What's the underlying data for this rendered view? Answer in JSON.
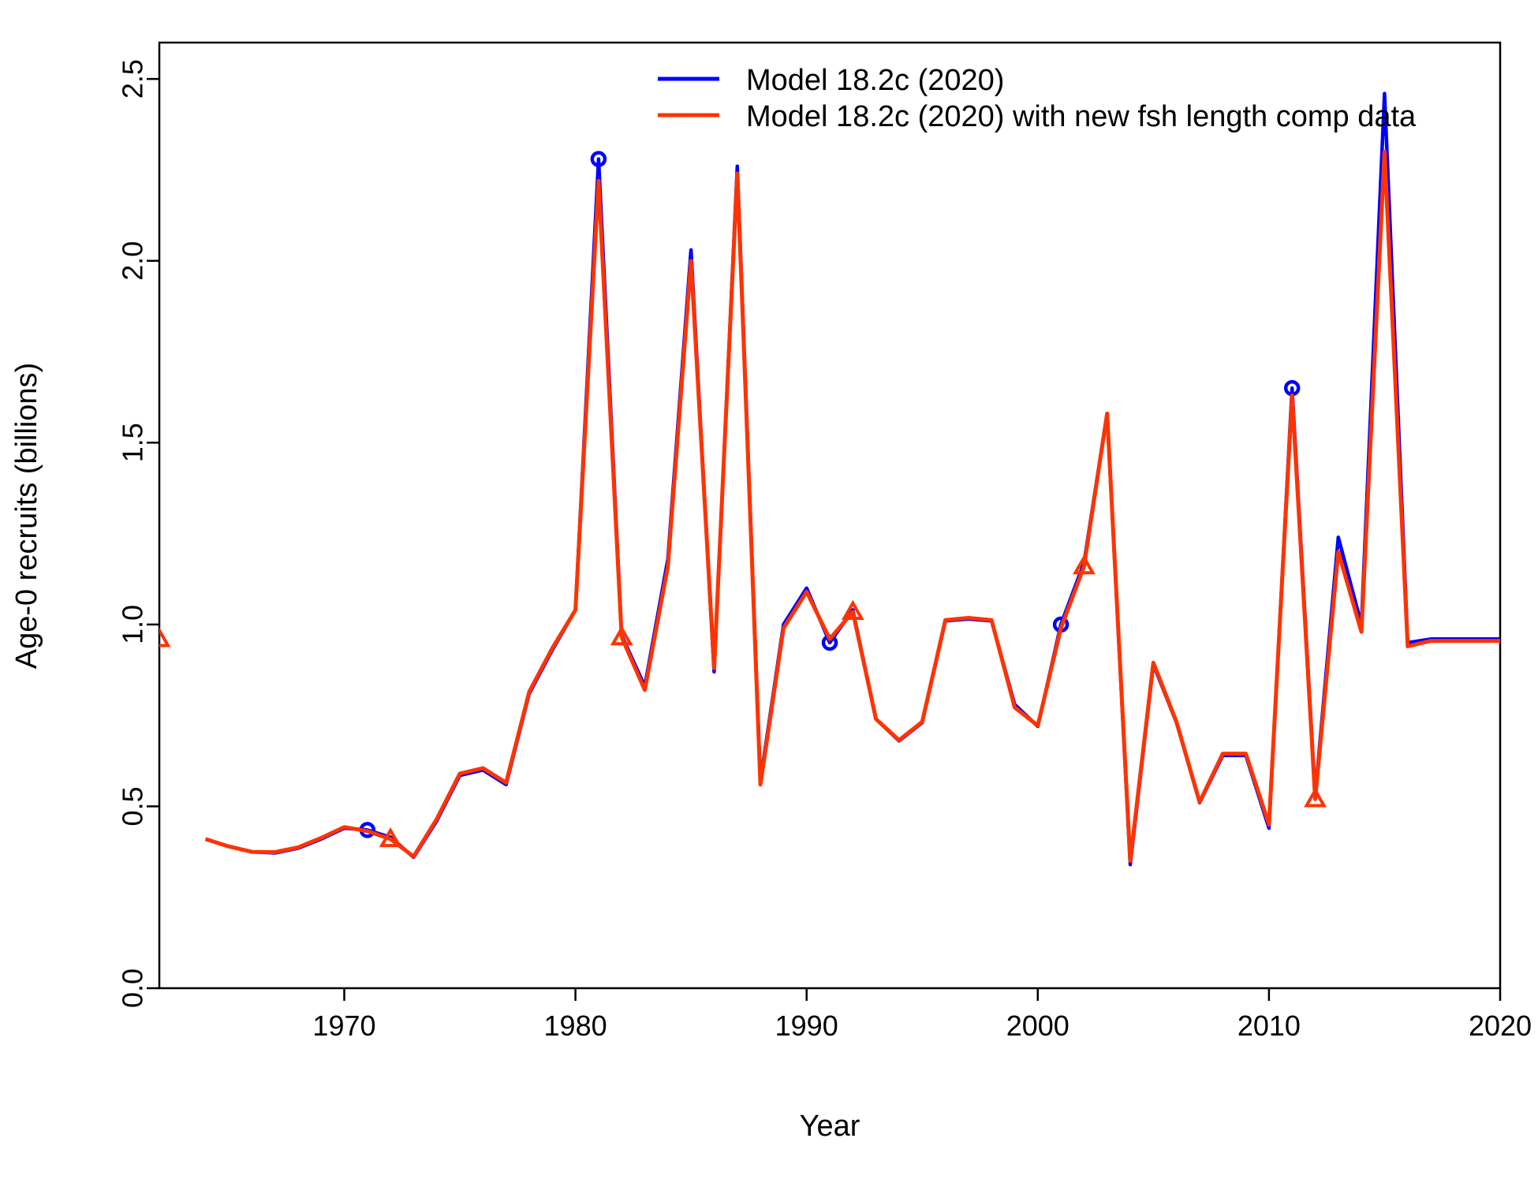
{
  "chart_data": {
    "type": "line",
    "xlabel": "Year",
    "ylabel": "Age-0 recruits (billions)",
    "xlim": [
      1962,
      2020
    ],
    "ylim": [
      0,
      2.6
    ],
    "x_ticks": [
      1970,
      1980,
      1990,
      2000,
      2010,
      2020
    ],
    "y_ticks": [
      0.0,
      0.5,
      1.0,
      1.5,
      2.0,
      2.5
    ],
    "y_tick_labels": [
      "0.0",
      "0.5",
      "1.0",
      "1.5",
      "2.0",
      "2.5"
    ],
    "grid": false,
    "legend_position": "top-right",
    "x": [
      1962,
      1963,
      1964,
      1965,
      1966,
      1967,
      1968,
      1969,
      1970,
      1971,
      1972,
      1973,
      1974,
      1975,
      1976,
      1977,
      1978,
      1979,
      1980,
      1981,
      1982,
      1983,
      1984,
      1985,
      1986,
      1987,
      1988,
      1989,
      1990,
      1991,
      1992,
      1993,
      1994,
      1995,
      1996,
      1997,
      1998,
      1999,
      2000,
      2001,
      2002,
      2003,
      2004,
      2005,
      2006,
      2007,
      2008,
      2009,
      2010,
      2011,
      2012,
      2013,
      2014,
      2015,
      2016,
      2017,
      2018,
      2019,
      2020
    ],
    "series": [
      {
        "name": "Model 18.2c (2020)",
        "color": "#0000ff",
        "marker": "circle",
        "marker_every": 10,
        "values": [
          0.97,
          null,
          0.41,
          0.39,
          0.375,
          0.372,
          0.385,
          0.41,
          0.44,
          0.435,
          0.415,
          0.36,
          0.46,
          0.585,
          0.6,
          0.56,
          0.81,
          0.93,
          1.04,
          2.28,
          0.97,
          0.83,
          1.18,
          2.03,
          0.87,
          2.26,
          0.57,
          1.0,
          1.1,
          0.95,
          1.04,
          0.74,
          0.68,
          0.73,
          1.01,
          1.015,
          1.01,
          0.78,
          0.72,
          1.0,
          1.17,
          1.58,
          0.34,
          0.89,
          0.73,
          0.51,
          0.64,
          0.64,
          0.44,
          1.65,
          0.53,
          1.24,
          1.0,
          2.46,
          0.95,
          0.96,
          0.96,
          0.96,
          0.96
        ]
      },
      {
        "name": "Model 18.2c (2020) with new fsh length comp data",
        "color": "#ff3300",
        "marker": "triangle",
        "marker_every": 10,
        "values": [
          0.96,
          null,
          0.41,
          0.39,
          0.375,
          0.374,
          0.387,
          0.413,
          0.443,
          0.432,
          0.41,
          0.362,
          0.465,
          0.59,
          0.605,
          0.565,
          0.815,
          0.935,
          1.04,
          2.22,
          0.965,
          0.82,
          1.16,
          2.0,
          0.88,
          2.24,
          0.56,
          0.99,
          1.09,
          0.96,
          1.035,
          0.74,
          0.682,
          0.732,
          1.012,
          1.018,
          1.012,
          0.772,
          0.722,
          0.99,
          1.16,
          1.58,
          0.35,
          0.895,
          0.732,
          0.512,
          0.645,
          0.645,
          0.45,
          1.63,
          0.52,
          1.2,
          0.98,
          2.3,
          0.94,
          0.955,
          0.955,
          0.955,
          0.955
        ]
      }
    ]
  }
}
